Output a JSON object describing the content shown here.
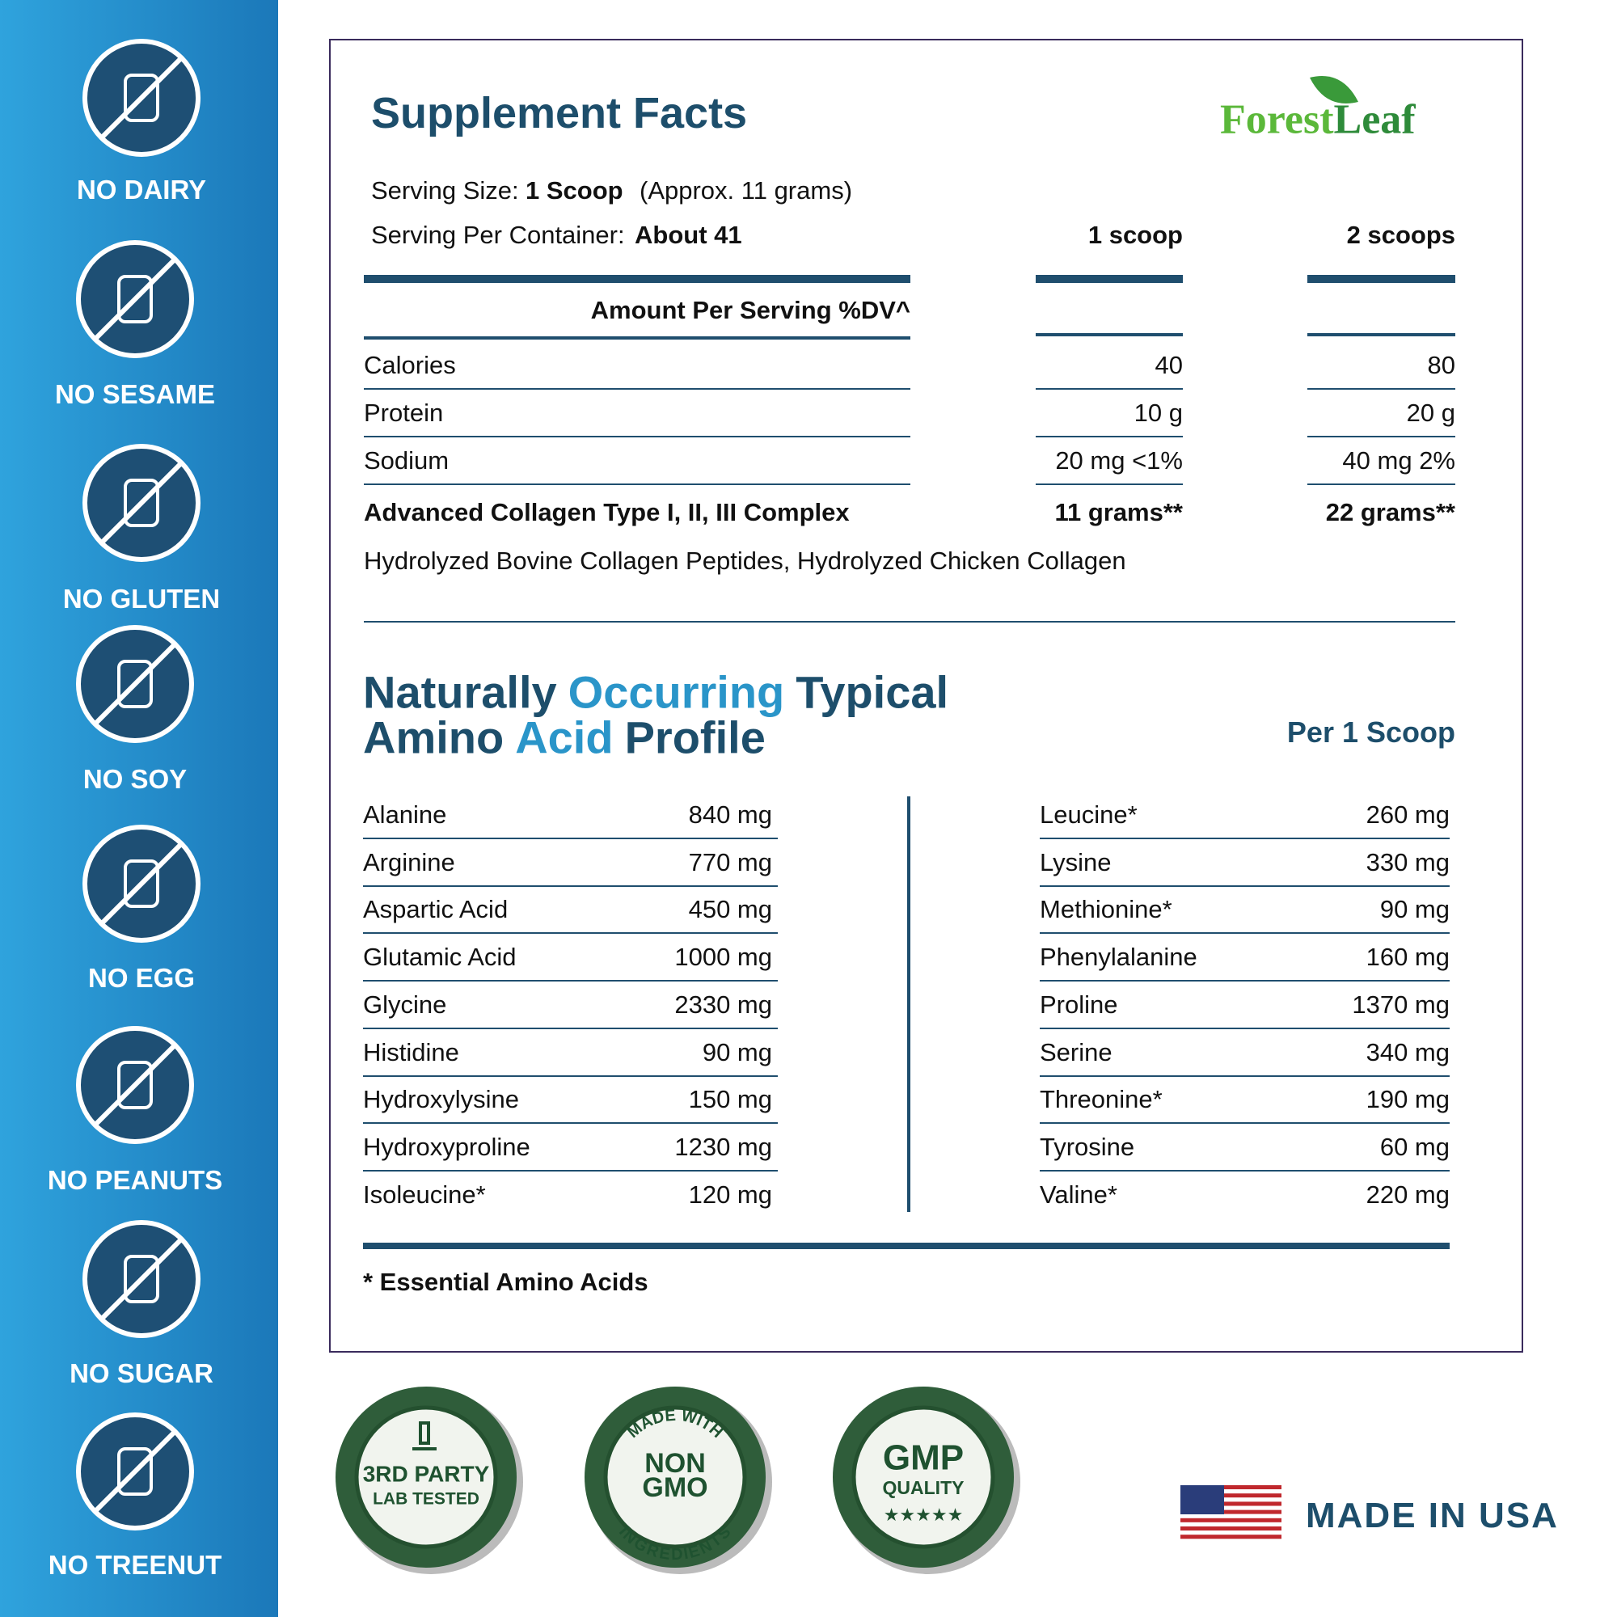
{
  "sidebar": {
    "badges": [
      "NO DAIRY",
      "NO SESAME",
      "NO GLUTEN",
      "NO SOY",
      "NO EGG",
      "NO PEANUTS",
      "NO SUGAR",
      "NO TREENUT"
    ]
  },
  "facts": {
    "title": "Supplement Facts",
    "brand": [
      "Forest",
      "Leaf"
    ],
    "serving_size_label": "Serving Size:",
    "serving_size": "1 Scoop",
    "serving_size_note": "(Approx. 11 grams)",
    "servings_label": "Serving Per Container:",
    "servings": "About 41",
    "columns": [
      "1 scoop",
      "2 scoops"
    ],
    "amount_header": "Amount Per Serving %DV^",
    "rows": [
      {
        "label": "Calories",
        "values": [
          "40",
          "80"
        ]
      },
      {
        "label": "Protein",
        "values": [
          "10 g",
          "20 g"
        ]
      },
      {
        "label": "Sodium",
        "values": [
          "20 mg <1%",
          "40 mg 2%"
        ]
      },
      {
        "label": "Advanced Collagen Type I, II, III Complex",
        "values": [
          "11 grams**",
          "22 grams**"
        ]
      }
    ],
    "ingredients": "Hydrolyzed Bovine Collagen Peptides, Hydrolyzed Chicken Collagen"
  },
  "amino": {
    "title_lines": [
      [
        "Naturally",
        "Occurring",
        "Typical"
      ],
      [
        "Amino",
        "Acid",
        "Profile"
      ]
    ],
    "per": "Per 1 Scoop",
    "left": [
      {
        "name": "Alanine",
        "amount": "840 mg"
      },
      {
        "name": "Arginine",
        "amount": "770 mg"
      },
      {
        "name": "Aspartic Acid",
        "amount": "450 mg"
      },
      {
        "name": "Glutamic Acid",
        "amount": "1000 mg"
      },
      {
        "name": "Glycine",
        "amount": "2330 mg"
      },
      {
        "name": "Histidine",
        "amount": "90 mg"
      },
      {
        "name": "Hydroxylysine",
        "amount": "150 mg"
      },
      {
        "name": "Hydroxyproline",
        "amount": "1230 mg"
      },
      {
        "name": "Isoleucine*",
        "amount": "120 mg"
      }
    ],
    "right": [
      {
        "name": "Leucine*",
        "amount": "260 mg"
      },
      {
        "name": "Lysine",
        "amount": "330 mg"
      },
      {
        "name": "Methionine*",
        "amount": "90 mg"
      },
      {
        "name": "Phenylalanine",
        "amount": "160 mg"
      },
      {
        "name": "Proline",
        "amount": "1370 mg"
      },
      {
        "name": "Serine",
        "amount": "340 mg"
      },
      {
        "name": "Threonine*",
        "amount": "190 mg"
      },
      {
        "name": "Tyrosine",
        "amount": "60 mg"
      },
      {
        "name": "Valine*",
        "amount": "220 mg"
      }
    ],
    "footnote": "* Essential Amino Acids"
  },
  "seals": [
    [
      "3RD PARTY",
      "LAB TESTED"
    ],
    [
      "MADE WITH",
      "NON",
      "GMO",
      "INGREDIENTS"
    ],
    [
      "GMP",
      "QUALITY"
    ]
  ],
  "origin": "MADE IN USA"
}
